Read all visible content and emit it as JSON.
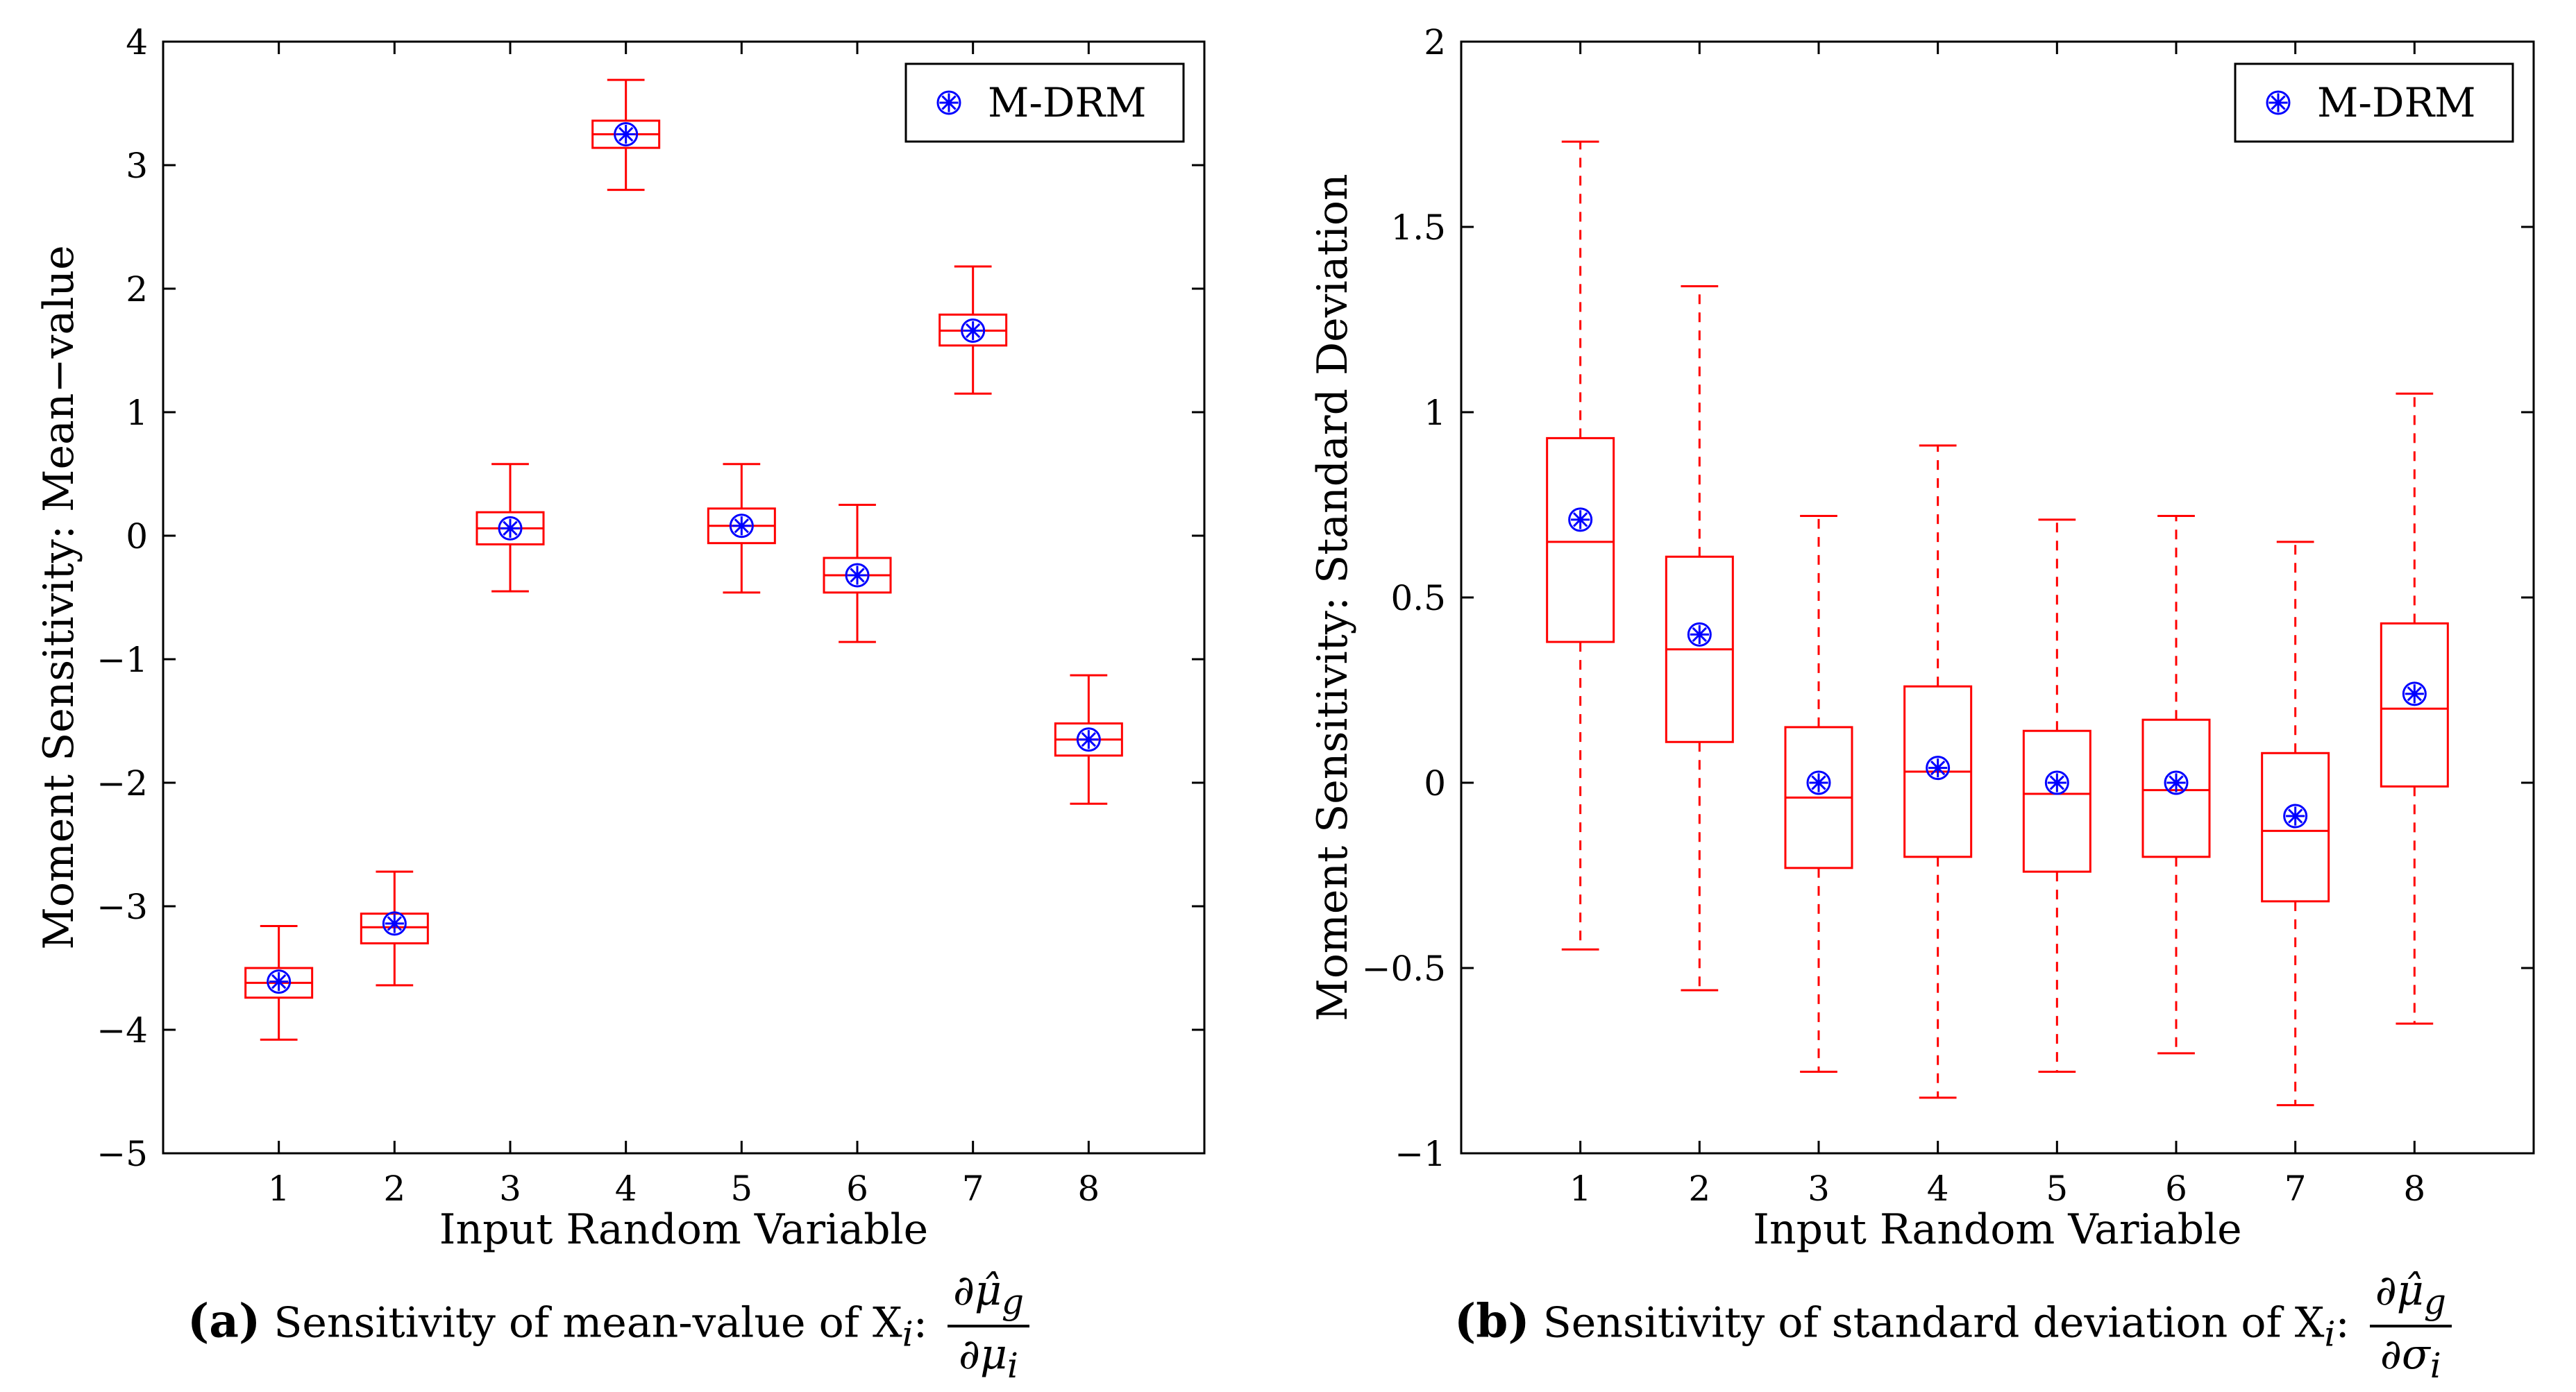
{
  "chart_data": [
    {
      "type": "boxplot",
      "xlabel": "Input Random Variable",
      "ylabel": "Moment Sensitivity: Mean−value",
      "categories": [
        "1",
        "2",
        "3",
        "4",
        "5",
        "6",
        "7",
        "8"
      ],
      "ylim": [
        -5,
        4
      ],
      "yticks": [
        -5,
        -4,
        -3,
        -2,
        -1,
        0,
        1,
        2,
        3,
        4
      ],
      "ytick_labels": [
        "−5",
        "−4",
        "−3",
        "−2",
        "−1",
        "0",
        "1",
        "2",
        "3",
        "4"
      ],
      "legend": {
        "label": "M-DRM",
        "position": "top-right"
      },
      "boxes": [
        {
          "whisker_low": -4.08,
          "q1": -3.74,
          "median": -3.62,
          "q3": -3.5,
          "whisker_high": -3.16
        },
        {
          "whisker_low": -3.64,
          "q1": -3.3,
          "median": -3.17,
          "q3": -3.06,
          "whisker_high": -2.72
        },
        {
          "whisker_low": -0.45,
          "q1": -0.07,
          "median": 0.06,
          "q3": 0.19,
          "whisker_high": 0.58
        },
        {
          "whisker_low": 2.8,
          "q1": 3.14,
          "median": 3.25,
          "q3": 3.36,
          "whisker_high": 3.69
        },
        {
          "whisker_low": -0.46,
          "q1": -0.06,
          "median": 0.08,
          "q3": 0.22,
          "whisker_high": 0.58
        },
        {
          "whisker_low": -0.86,
          "q1": -0.46,
          "median": -0.32,
          "q3": -0.18,
          "whisker_high": 0.25
        },
        {
          "whisker_low": 1.15,
          "q1": 1.54,
          "median": 1.66,
          "q3": 1.79,
          "whisker_high": 2.18
        },
        {
          "whisker_low": -2.17,
          "q1": -1.78,
          "median": -1.65,
          "q3": -1.52,
          "whisker_high": -1.13
        }
      ],
      "mdrm_values": [
        -3.61,
        -3.14,
        0.06,
        3.25,
        0.08,
        -0.32,
        1.66,
        -1.65
      ],
      "caption": {
        "letter": "(a)",
        "text": "Sensitivity of mean-value of X",
        "subscript": "i",
        "colon": ":",
        "frac_num": "∂μ̂",
        "frac_num_sub": "g",
        "frac_den": "∂μ",
        "frac_den_sub": "i"
      }
    },
    {
      "type": "boxplot",
      "xlabel": "Input Random Variable",
      "ylabel": "Moment Sensitivity: Standard Deviation",
      "categories": [
        "1",
        "2",
        "3",
        "4",
        "5",
        "6",
        "7",
        "8"
      ],
      "ylim": [
        -1,
        2
      ],
      "yticks": [
        -1,
        -0.5,
        0,
        0.5,
        1,
        1.5,
        2
      ],
      "ytick_labels": [
        "−1",
        "−0.5",
        "0",
        "0.5",
        "1",
        "1.5",
        "2"
      ],
      "legend": {
        "label": "M-DRM",
        "position": "top-right"
      },
      "boxes": [
        {
          "whisker_low": -0.45,
          "q1": 0.38,
          "median": 0.65,
          "q3": 0.93,
          "whisker_high": 1.73
        },
        {
          "whisker_low": -0.56,
          "q1": 0.11,
          "median": 0.36,
          "q3": 0.61,
          "whisker_high": 1.34
        },
        {
          "whisker_low": -0.78,
          "q1": -0.23,
          "median": -0.04,
          "q3": 0.15,
          "whisker_high": 0.72
        },
        {
          "whisker_low": -0.85,
          "q1": -0.2,
          "median": 0.03,
          "q3": 0.26,
          "whisker_high": 0.91
        },
        {
          "whisker_low": -0.78,
          "q1": -0.24,
          "median": -0.03,
          "q3": 0.14,
          "whisker_high": 0.71
        },
        {
          "whisker_low": -0.73,
          "q1": -0.2,
          "median": -0.02,
          "q3": 0.17,
          "whisker_high": 0.72
        },
        {
          "whisker_low": -0.87,
          "q1": -0.32,
          "median": -0.13,
          "q3": 0.08,
          "whisker_high": 0.65
        },
        {
          "whisker_low": -0.65,
          "q1": -0.01,
          "median": 0.2,
          "q3": 0.43,
          "whisker_high": 1.05
        }
      ],
      "mdrm_values": [
        0.71,
        0.4,
        0.0,
        0.04,
        0.0,
        0.0,
        -0.09,
        0.24
      ],
      "caption": {
        "letter": "(b)",
        "text": "Sensitivity of standard deviation of X",
        "subscript": "i",
        "colon": ":",
        "frac_num": "∂μ̂",
        "frac_num_sub": "g",
        "frac_den": "∂σ",
        "frac_den_sub": "i"
      }
    }
  ],
  "colors": {
    "box": "#ff0000",
    "marker": "#0000ff",
    "axis": "#000000"
  }
}
